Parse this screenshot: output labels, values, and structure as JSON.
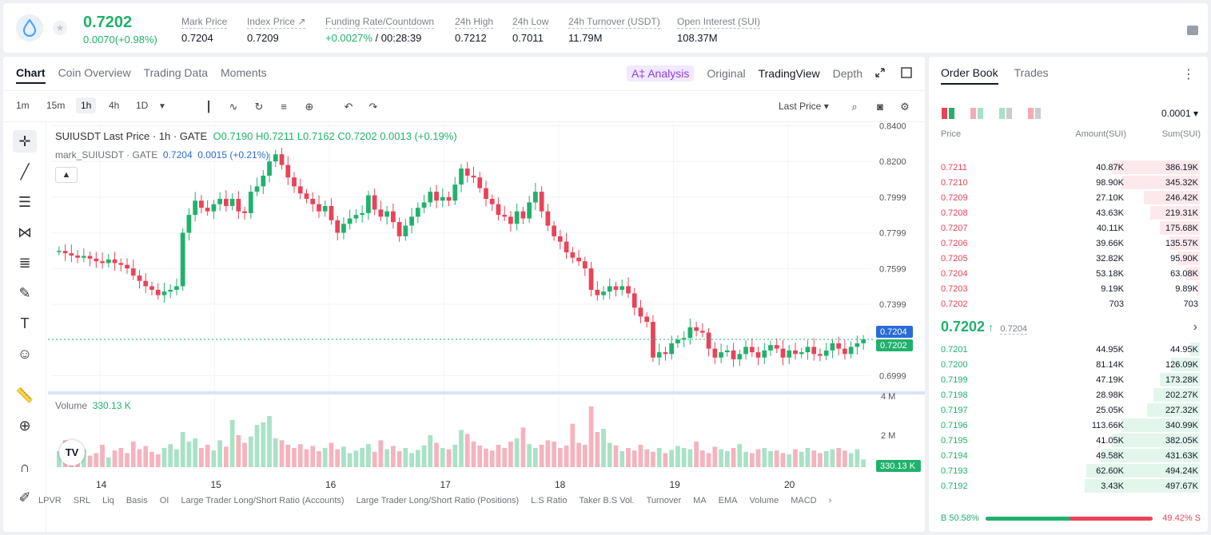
{
  "ticker": {
    "last_price": "0.7202",
    "change": "0.0070(+0.98%)",
    "stats": [
      {
        "label": "Mark Price",
        "value": "0.7204"
      },
      {
        "label": "Index Price ↗",
        "value": "0.7209"
      },
      {
        "label": "Funding Rate/Countdown",
        "value_green": "+0.0027%",
        "value": " / 00:28:39"
      },
      {
        "label": "24h High",
        "value": "0.7212"
      },
      {
        "label": "24h Low",
        "value": "0.7011"
      },
      {
        "label": "24h Turnover (USDT)",
        "value": "11.79M"
      },
      {
        "label": "Open Interest (SUI)",
        "value": "108.37M"
      }
    ]
  },
  "chart_tabs": [
    "Chart",
    "Coin Overview",
    "Trading Data",
    "Moments"
  ],
  "view_tabs": {
    "ai": "A‡ Analysis",
    "original": "Original",
    "tradingview": "TradingView",
    "depth": "Depth"
  },
  "timeframes": [
    "1m",
    "15m",
    "1h",
    "4h",
    "1D"
  ],
  "price_type": "Last Price",
  "legend": {
    "symbol": "SUIUSDT Last Price · 1h · GATE",
    "o": "O0.7190",
    "h": "H0.7211",
    "l": "L0.7162",
    "c": "C0.7202",
    "chg": "0.0013 (+0.19%)",
    "mark": "mark_SUIUSDT · GATE",
    "mark_val": "0.7204",
    "mark_chg": "0.0015 (+0.21%)"
  },
  "volume_label": "Volume",
  "volume_value": "330.13 K",
  "tv_logo": "TV",
  "bottom_indicators": [
    "LPVR",
    "SRL",
    "Liq",
    "Basis",
    "OI",
    "Large Trader Long/Short Ratio (Accounts)",
    "Large Trader Long/Short Ratio (Positions)",
    "L.S Ratio",
    "Taker B.S Vol.",
    "Turnover",
    "MA",
    "EMA",
    "Volume",
    "MACD"
  ],
  "chart_data": {
    "type": "candlestick",
    "y_ticks": [
      "0.8400",
      "0.8200",
      "0.7999",
      "0.7799",
      "0.7599",
      "0.7399",
      "0.6999"
    ],
    "ylim": [
      0.692,
      0.842
    ],
    "x_ticks": [
      "14",
      "15",
      "16",
      "17",
      "18",
      "19",
      "20"
    ],
    "badges": {
      "mark": "0.7204",
      "last": "0.7202"
    },
    "volume_ticks": [
      "4 M",
      "2 M"
    ],
    "volume_badge": "330.13 K",
    "close_path": [
      0.7698,
      0.7685,
      0.7672,
      0.766,
      0.767,
      0.7655,
      0.764,
      0.763,
      0.765,
      0.763,
      0.762,
      0.76,
      0.756,
      0.753,
      0.75,
      0.748,
      0.745,
      0.747,
      0.748,
      0.75,
      0.78,
      0.79,
      0.798,
      0.794,
      0.792,
      0.796,
      0.799,
      0.795,
      0.799,
      0.792,
      0.791,
      0.803,
      0.806,
      0.812,
      0.82,
      0.824,
      0.818,
      0.811,
      0.806,
      0.802,
      0.799,
      0.796,
      0.792,
      0.795,
      0.787,
      0.78,
      0.785,
      0.788,
      0.79,
      0.791,
      0.801,
      0.793,
      0.789,
      0.792,
      0.786,
      0.778,
      0.784,
      0.789,
      0.794,
      0.797,
      0.803,
      0.798,
      0.8,
      0.798,
      0.807,
      0.816,
      0.812,
      0.811,
      0.805,
      0.799,
      0.796,
      0.79,
      0.789,
      0.785,
      0.792,
      0.788,
      0.797,
      0.803,
      0.792,
      0.784,
      0.778,
      0.775,
      0.769,
      0.766,
      0.764,
      0.76,
      0.748,
      0.745,
      0.747,
      0.75,
      0.748,
      0.75,
      0.746,
      0.738,
      0.733,
      0.73,
      0.71,
      0.713,
      0.712,
      0.718,
      0.72,
      0.721,
      0.727,
      0.725,
      0.724,
      0.715,
      0.71,
      0.713,
      0.714,
      0.709,
      0.712,
      0.716,
      0.713,
      0.71,
      0.714,
      0.717,
      0.715,
      0.71,
      0.714,
      0.712,
      0.713,
      0.716,
      0.712,
      0.711,
      0.714,
      0.718,
      0.715,
      0.712,
      0.716,
      0.718,
      0.7202
    ],
    "volume_rel": [
      0.25,
      0.42,
      0.3,
      0.2,
      0.28,
      0.18,
      0.22,
      0.35,
      0.15,
      0.26,
      0.3,
      0.22,
      0.4,
      0.28,
      0.33,
      0.24,
      0.2,
      0.3,
      0.36,
      0.28,
      0.55,
      0.4,
      0.45,
      0.3,
      0.35,
      0.26,
      0.42,
      0.32,
      0.74,
      0.5,
      0.38,
      0.48,
      0.66,
      0.7,
      0.8,
      0.45,
      0.42,
      0.35,
      0.3,
      0.36,
      0.28,
      0.33,
      0.25,
      0.3,
      0.38,
      0.28,
      0.32,
      0.22,
      0.26,
      0.3,
      0.36,
      0.24,
      0.42,
      0.28,
      0.33,
      0.25,
      0.3,
      0.22,
      0.27,
      0.34,
      0.5,
      0.38,
      0.3,
      0.28,
      0.35,
      0.58,
      0.52,
      0.4,
      0.34,
      0.29,
      0.26,
      0.35,
      0.3,
      0.4,
      0.45,
      0.62,
      0.36,
      0.3,
      0.35,
      0.42,
      0.4,
      0.3,
      0.34,
      0.68,
      0.38,
      0.35,
      0.95,
      0.55,
      0.6,
      0.38,
      0.34,
      0.25,
      0.3,
      0.26,
      0.35,
      0.28,
      0.24,
      0.3,
      0.22,
      0.27,
      0.33,
      0.3,
      0.28,
      0.4,
      0.26,
      0.22,
      0.32,
      0.28,
      0.25,
      0.3,
      0.36,
      0.24,
      0.22,
      0.28,
      0.3,
      0.25,
      0.26,
      0.22,
      0.2,
      0.28,
      0.24,
      0.3,
      0.26,
      0.22,
      0.25,
      0.28,
      0.3,
      0.26,
      0.22,
      0.28,
      0.12
    ]
  },
  "orderbook": {
    "tabs": [
      "Order Book",
      "Trades"
    ],
    "precision": "0.0001",
    "headers": {
      "price": "Price",
      "amount": "Amount(SUI)",
      "sum": "Sum(SUI)"
    },
    "asks": [
      {
        "p": "0.7211",
        "a": "40.87K",
        "s": "386.19K",
        "w": 0.55
      },
      {
        "p": "0.7210",
        "a": "98.90K",
        "s": "345.32K",
        "w": 0.49
      },
      {
        "p": "0.7209",
        "a": "27.10K",
        "s": "246.42K",
        "w": 0.35
      },
      {
        "p": "0.7208",
        "a": "43.63K",
        "s": "219.31K",
        "w": 0.31
      },
      {
        "p": "0.7207",
        "a": "40.11K",
        "s": "175.68K",
        "w": 0.25
      },
      {
        "p": "0.7206",
        "a": "39.66K",
        "s": "135.57K",
        "w": 0.19
      },
      {
        "p": "0.7205",
        "a": "32.82K",
        "s": "95.90K",
        "w": 0.14
      },
      {
        "p": "0.7204",
        "a": "53.18K",
        "s": "63.08K",
        "w": 0.09
      },
      {
        "p": "0.7203",
        "a": "9.19K",
        "s": "9.89K",
        "w": 0.02
      },
      {
        "p": "0.7202",
        "a": "703",
        "s": "703",
        "w": 0.0
      }
    ],
    "mid_price": "0.7202",
    "mark_price": "0.7204",
    "bids": [
      {
        "p": "0.7201",
        "a": "44.95K",
        "s": "44.95K",
        "w": 0.06
      },
      {
        "p": "0.7200",
        "a": "81.14K",
        "s": "126.09K",
        "w": 0.18
      },
      {
        "p": "0.7199",
        "a": "47.19K",
        "s": "173.28K",
        "w": 0.25
      },
      {
        "p": "0.7198",
        "a": "28.98K",
        "s": "202.27K",
        "w": 0.29
      },
      {
        "p": "0.7197",
        "a": "25.05K",
        "s": "227.32K",
        "w": 0.33
      },
      {
        "p": "0.7196",
        "a": "113.66K",
        "s": "340.99K",
        "w": 0.49
      },
      {
        "p": "0.7195",
        "a": "41.05K",
        "s": "382.05K",
        "w": 0.55
      },
      {
        "p": "0.7194",
        "a": "49.58K",
        "s": "431.63K",
        "w": 0.62
      },
      {
        "p": "0.7193",
        "a": "62.60K",
        "s": "494.24K",
        "w": 0.71
      },
      {
        "p": "0.7192",
        "a": "3.43K",
        "s": "497.67K",
        "w": 0.72
      }
    ],
    "buy_ratio": "B 50.58%",
    "sell_ratio": "49.42% S",
    "buy_frac": 0.5058
  },
  "colors": {
    "up": "#20b26c",
    "down": "#e94359",
    "accent": "#8a3ee6",
    "mark": "#2b6bd9"
  }
}
